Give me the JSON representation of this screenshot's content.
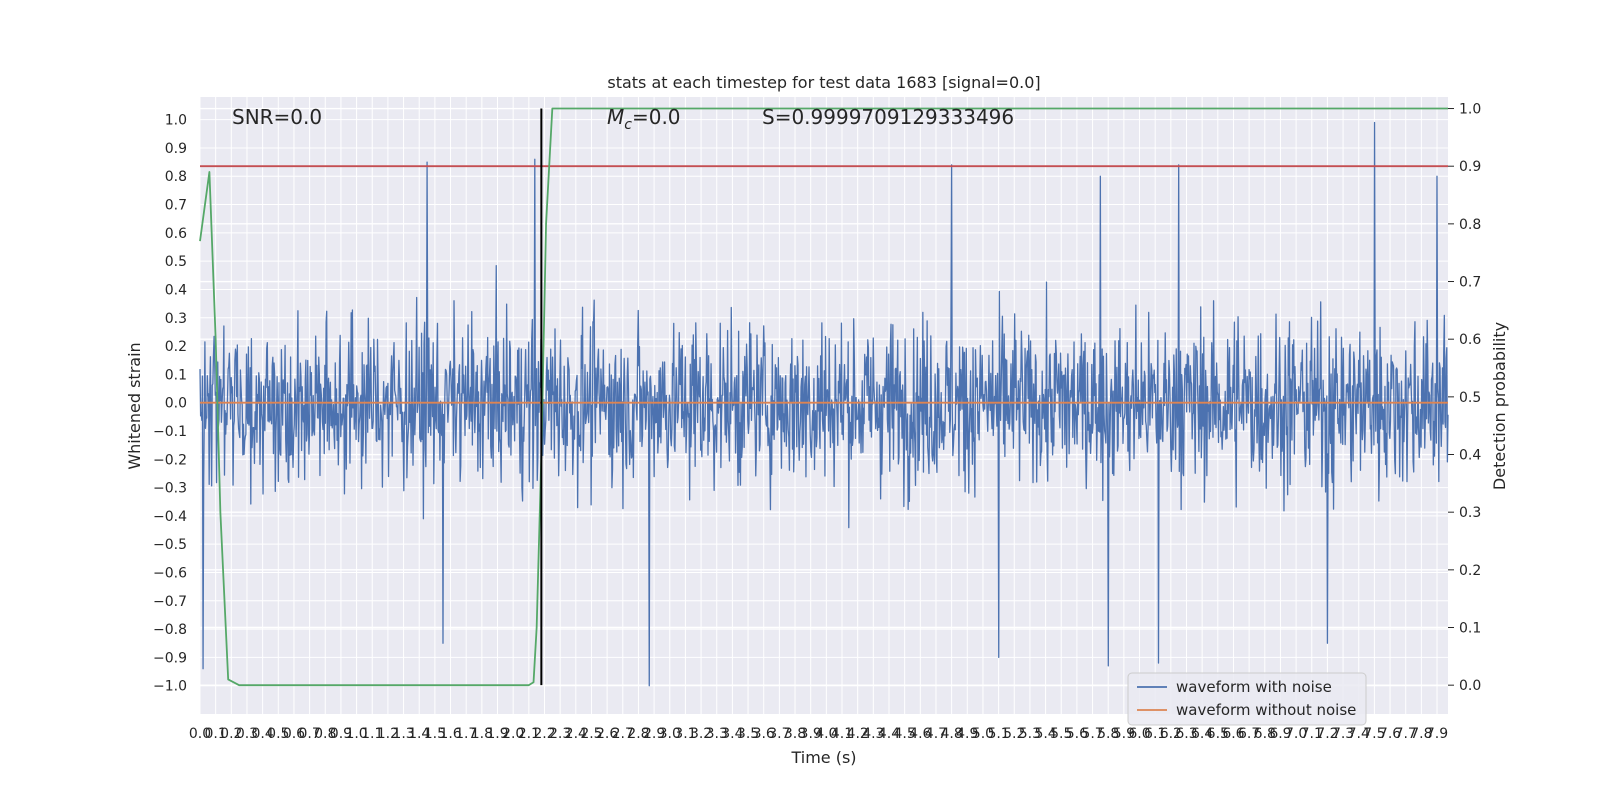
{
  "chart_data": {
    "type": "line",
    "title": "stats at each timestep for test data 1683 [signal=0.0]",
    "xlabel": "Time (s)",
    "ylabel_left": "Whitened strain",
    "ylabel_right": "Detection probability",
    "xlim": [
      0.0,
      7.97
    ],
    "ylim_left": [
      -1.1,
      1.08
    ],
    "ylim_right": [
      -0.05,
      1.02
    ],
    "x_tick_values": [
      0.0,
      0.1,
      0.2,
      0.3,
      0.4,
      0.5,
      0.6,
      0.7,
      0.8,
      0.9,
      1.0,
      1.1,
      1.2,
      1.3,
      1.4,
      1.5,
      1.6,
      1.7,
      1.8,
      1.9,
      2.0,
      2.1,
      2.2,
      2.3,
      2.4,
      2.5,
      2.6,
      2.7,
      2.8,
      2.9,
      3.0,
      3.1,
      3.2,
      3.3,
      3.4,
      3.5,
      3.6,
      3.7,
      3.8,
      3.9,
      4.0,
      4.1,
      4.2,
      4.3,
      4.4,
      4.5,
      4.6,
      4.7,
      4.8,
      4.9,
      5.0,
      5.1,
      5.2,
      5.3,
      5.4,
      5.5,
      5.6,
      5.7,
      5.8,
      5.9,
      6.0,
      6.1,
      6.2,
      6.3,
      6.4,
      6.5,
      6.6,
      6.7,
      6.8,
      6.9,
      7.0,
      7.1,
      7.2,
      7.3,
      7.4,
      7.5,
      7.6,
      7.7,
      7.8,
      7.9
    ],
    "x_tick_labels": [
      "0.0",
      "0.1",
      "0.2",
      "0.3",
      "0.4",
      "0.5",
      "0.6",
      "0.7",
      "0.8",
      "0.9",
      "1.0",
      "1.1",
      "1.2",
      "1.3",
      "1.4",
      "1.5",
      "1.6",
      "1.7",
      "1.8",
      "1.9",
      "2.0",
      "2.1",
      "2.2",
      "2.3",
      "2.4",
      "2.5",
      "2.6",
      "2.7",
      "2.8",
      "2.9",
      "3.0",
      "3.1",
      "3.2",
      "3.3",
      "3.4",
      "3.5",
      "3.6",
      "3.7",
      "3.8",
      "3.9",
      "4.0",
      "4.1",
      "4.2",
      "4.3",
      "4.4",
      "4.5",
      "4.6",
      "4.7",
      "4.8",
      "4.9",
      "5.0",
      "5.1",
      "5.2",
      "5.3",
      "5.4",
      "5.5",
      "5.6",
      "5.7",
      "5.8",
      "5.9",
      "6.0",
      "6.1",
      "6.2",
      "6.3",
      "6.4",
      "6.5",
      "6.6",
      "6.7",
      "6.8",
      "6.9",
      "7.0",
      "7.1",
      "7.2",
      "7.3",
      "7.4",
      "7.5",
      "7.6",
      "7.7",
      "7.8",
      "7.9"
    ],
    "y_left_tick_values": [
      1.0,
      0.9,
      0.8,
      0.7,
      0.6,
      0.5,
      0.4,
      0.3,
      0.2,
      0.1,
      0.0,
      -0.1,
      -0.2,
      -0.3,
      -0.4,
      -0.5,
      -0.6,
      -0.7,
      -0.8,
      -0.9,
      -1.0
    ],
    "y_left_tick_labels": [
      "1.0",
      "0.9",
      "0.8",
      "0.7",
      "0.6",
      "0.5",
      "0.4",
      "0.3",
      "0.2",
      "0.1",
      "0.0",
      "−0.1",
      "−0.2",
      "−0.3",
      "−0.4",
      "−0.5",
      "−0.6",
      "−0.7",
      "−0.8",
      "−0.9",
      "−1.0"
    ],
    "y_right_tick_values": [
      1.0,
      0.9,
      0.8,
      0.7,
      0.6,
      0.5,
      0.4,
      0.3,
      0.2,
      0.1,
      0.0
    ],
    "y_right_tick_labels": [
      "1.0",
      "0.9",
      "0.8",
      "0.7",
      "0.6",
      "0.5",
      "0.4",
      "0.3",
      "0.2",
      "0.1",
      "0.0"
    ],
    "annotations": {
      "snr": "SNR=0.0",
      "mc_symbol": "M",
      "mc_subscript": "c",
      "mc_value": "=0.0",
      "s": "S=0.9999709129333496"
    },
    "threshold_line": {
      "axis": "right",
      "y": 0.9,
      "color": "#c44e52"
    },
    "vertical_marker": {
      "x": 2.18,
      "color": "#000000"
    },
    "series": [
      {
        "name": "waveform with noise",
        "color": "#4c72b0",
        "axis": "left",
        "kind": "noise",
        "n_samples": 2040,
        "typical_envelope": [
          -0.4,
          0.4
        ],
        "extreme_peaks": [
          {
            "x": 1.45,
            "y": 0.85
          },
          {
            "x": 2.14,
            "y": 0.86
          },
          {
            "x": 7.5,
            "y": 0.99
          },
          {
            "x": 4.8,
            "y": 0.84
          },
          {
            "x": 6.25,
            "y": 0.84
          },
          {
            "x": 5.75,
            "y": 0.8
          },
          {
            "x": 7.9,
            "y": 0.8
          },
          {
            "x": 0.02,
            "y": -0.94
          },
          {
            "x": 2.87,
            "y": -1.0
          },
          {
            "x": 1.55,
            "y": -0.85
          },
          {
            "x": 5.8,
            "y": -0.93
          },
          {
            "x": 6.12,
            "y": -0.92
          },
          {
            "x": 5.1,
            "y": -0.9
          },
          {
            "x": 7.2,
            "y": -0.85
          }
        ]
      },
      {
        "name": "waveform without noise",
        "color": "#dd8452",
        "axis": "left",
        "x": [
          0.0,
          7.97
        ],
        "y": [
          0.0,
          0.0
        ]
      },
      {
        "name": "",
        "color": "#55a868",
        "axis": "right",
        "x": [
          0.0,
          0.06,
          0.1,
          0.13,
          0.18,
          0.25,
          0.5,
          1.0,
          1.5,
          2.0,
          2.05,
          2.1,
          2.13,
          2.15,
          2.18,
          2.21,
          2.25,
          2.3,
          2.4,
          3.0,
          4.0,
          5.0,
          6.0,
          7.0,
          7.97
        ],
        "y": [
          0.77,
          0.89,
          0.6,
          0.3,
          0.01,
          0.0,
          0.0,
          0.0,
          0.0,
          0.0,
          0.0,
          0.0,
          0.005,
          0.1,
          0.4,
          0.8,
          1.0,
          1.0,
          1.0,
          1.0,
          1.0,
          1.0,
          1.0,
          1.0,
          1.0
        ]
      }
    ],
    "legend": {
      "placement": "lower-right",
      "entries": [
        {
          "label": "waveform with noise",
          "color": "#4c72b0"
        },
        {
          "label": "waveform without noise",
          "color": "#dd8452"
        }
      ]
    },
    "grid": true,
    "background": "#eaeaf2"
  }
}
